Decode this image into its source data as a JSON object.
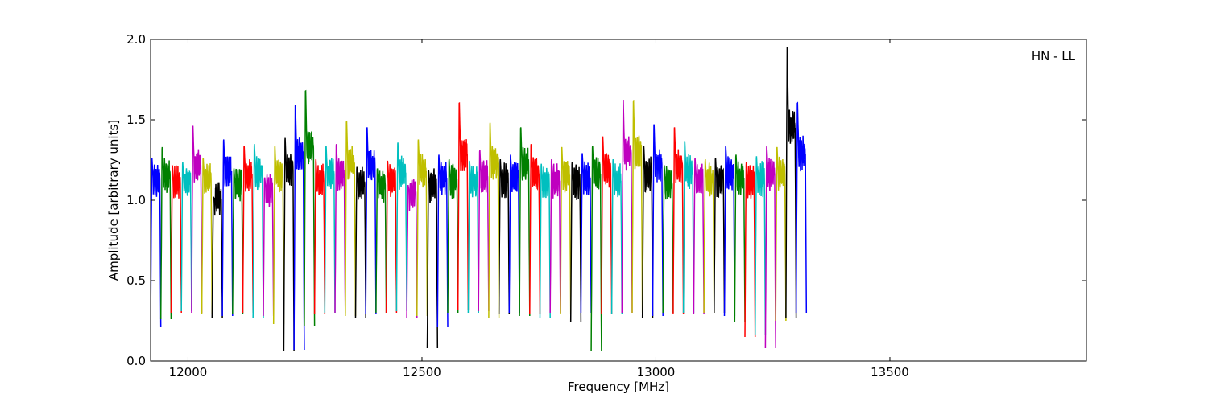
{
  "chart_data": {
    "type": "line",
    "xlabel": "Frequency [MHz]",
    "ylabel": "Amplitude [arbitrary units]",
    "annotation": "HN - LL",
    "xlim": [
      11920,
      13920
    ],
    "ylim": [
      0.0,
      2.0
    ],
    "xticks": [
      12000,
      12500,
      13000,
      13500
    ],
    "yticks": [
      0.0,
      0.5,
      1.0,
      1.5,
      2.0
    ],
    "xtick_labels": [
      "12000",
      "12500",
      "13000",
      "13500"
    ],
    "ytick_labels": [
      "0.0",
      "0.5",
      "1.0",
      "1.5",
      "2.0"
    ],
    "grid": false,
    "colors": [
      "#0000ff",
      "#008000",
      "#ff0000",
      "#00bfbf",
      "#bf00bf",
      "#bfbf00",
      "#000000"
    ],
    "channel_width_mhz": 21.9,
    "channel_start_mhz": 11920,
    "channel_peaks": [
      1.28,
      1.35,
      1.23,
      1.25,
      1.49,
      1.28,
      1.02,
      1.4,
      1.21,
      1.36,
      1.37,
      1.15,
      1.36,
      1.41,
      1.63,
      1.72,
      1.27,
      1.36,
      1.37,
      1.52,
      1.22,
      1.48,
      1.21,
      1.26,
      1.38,
      1.1,
      1.4,
      1.2,
      1.3,
      1.27,
      1.64,
      1.26,
      1.33,
      1.51,
      1.27,
      1.3,
      1.48,
      1.37,
      1.24,
      1.27,
      1.35,
      1.25,
      1.31,
      1.36,
      1.42,
      1.27,
      1.65,
      1.65,
      1.36,
      1.5,
      1.23,
      1.48,
      1.39,
      1.28,
      1.27,
      1.28,
      1.36,
      1.3,
      1.25,
      1.29,
      1.36,
      1.35,
      2.0,
      1.64
    ],
    "channel_troughs": [
      0.21,
      0.26,
      0.3,
      0.31,
      0.3,
      0.29,
      0.27,
      0.28,
      0.29,
      0.3,
      0.27,
      0.28,
      0.23,
      0.06,
      0.07,
      0.22,
      0.29,
      0.3,
      0.3,
      0.28,
      0.27,
      0.29,
      0.3,
      0.3,
      0.31,
      0.27,
      0.28,
      0.08,
      0.21,
      0.3,
      0.32,
      0.3,
      0.31,
      0.27,
      0.29,
      0.3,
      0.28,
      0.29,
      0.27,
      0.3,
      0.29,
      0.24,
      0.3,
      0.06,
      0.29,
      0.29,
      0.3,
      0.3,
      0.27,
      0.28,
      0.3,
      0.29,
      0.3,
      0.29,
      0.3,
      0.3,
      0.28,
      0.24,
      0.15,
      0.16,
      0.08,
      0.25,
      0.27,
      0.3
    ]
  }
}
